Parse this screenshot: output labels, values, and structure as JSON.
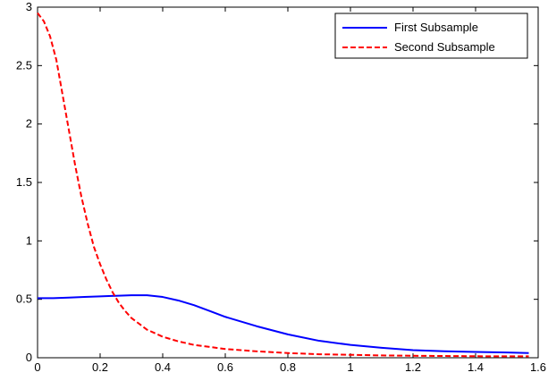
{
  "chart_data": {
    "type": "line",
    "title": "",
    "xlabel": "",
    "ylabel": "",
    "xlim": [
      0,
      1.6
    ],
    "ylim": [
      0,
      3
    ],
    "xticks": [
      "0",
      "0.2",
      "0.4",
      "0.6",
      "0.8",
      "1",
      "1.2",
      "1.4",
      "1.6"
    ],
    "yticks": [
      "0",
      "0.5",
      "1",
      "1.5",
      "2",
      "2.5",
      "3"
    ],
    "grid": false,
    "legend_position": "top-right",
    "series": [
      {
        "name": "First Subsample",
        "color": "#0000ff",
        "style": "solid",
        "x": [
          0,
          0.05,
          0.1,
          0.15,
          0.2,
          0.25,
          0.3,
          0.35,
          0.4,
          0.45,
          0.5,
          0.55,
          0.6,
          0.7,
          0.8,
          0.9,
          1.0,
          1.1,
          1.2,
          1.3,
          1.4,
          1.5,
          1.57
        ],
        "y": [
          0.51,
          0.51,
          0.515,
          0.52,
          0.525,
          0.53,
          0.535,
          0.535,
          0.52,
          0.49,
          0.45,
          0.4,
          0.35,
          0.27,
          0.2,
          0.145,
          0.11,
          0.085,
          0.065,
          0.055,
          0.05,
          0.045,
          0.04
        ]
      },
      {
        "name": "Second Subsample",
        "color": "#ff0000",
        "style": "dashed",
        "x": [
          0,
          0.02,
          0.04,
          0.06,
          0.08,
          0.1,
          0.12,
          0.14,
          0.16,
          0.18,
          0.2,
          0.22,
          0.24,
          0.26,
          0.28,
          0.3,
          0.35,
          0.4,
          0.45,
          0.5,
          0.6,
          0.7,
          0.8,
          0.9,
          1.0,
          1.1,
          1.2,
          1.3,
          1.4,
          1.5,
          1.57
        ],
        "y": [
          2.95,
          2.88,
          2.75,
          2.55,
          2.25,
          1.95,
          1.65,
          1.38,
          1.15,
          0.95,
          0.8,
          0.67,
          0.56,
          0.47,
          0.4,
          0.34,
          0.24,
          0.18,
          0.14,
          0.11,
          0.075,
          0.055,
          0.04,
          0.03,
          0.025,
          0.02,
          0.017,
          0.015,
          0.013,
          0.012,
          0.012
        ]
      }
    ]
  }
}
